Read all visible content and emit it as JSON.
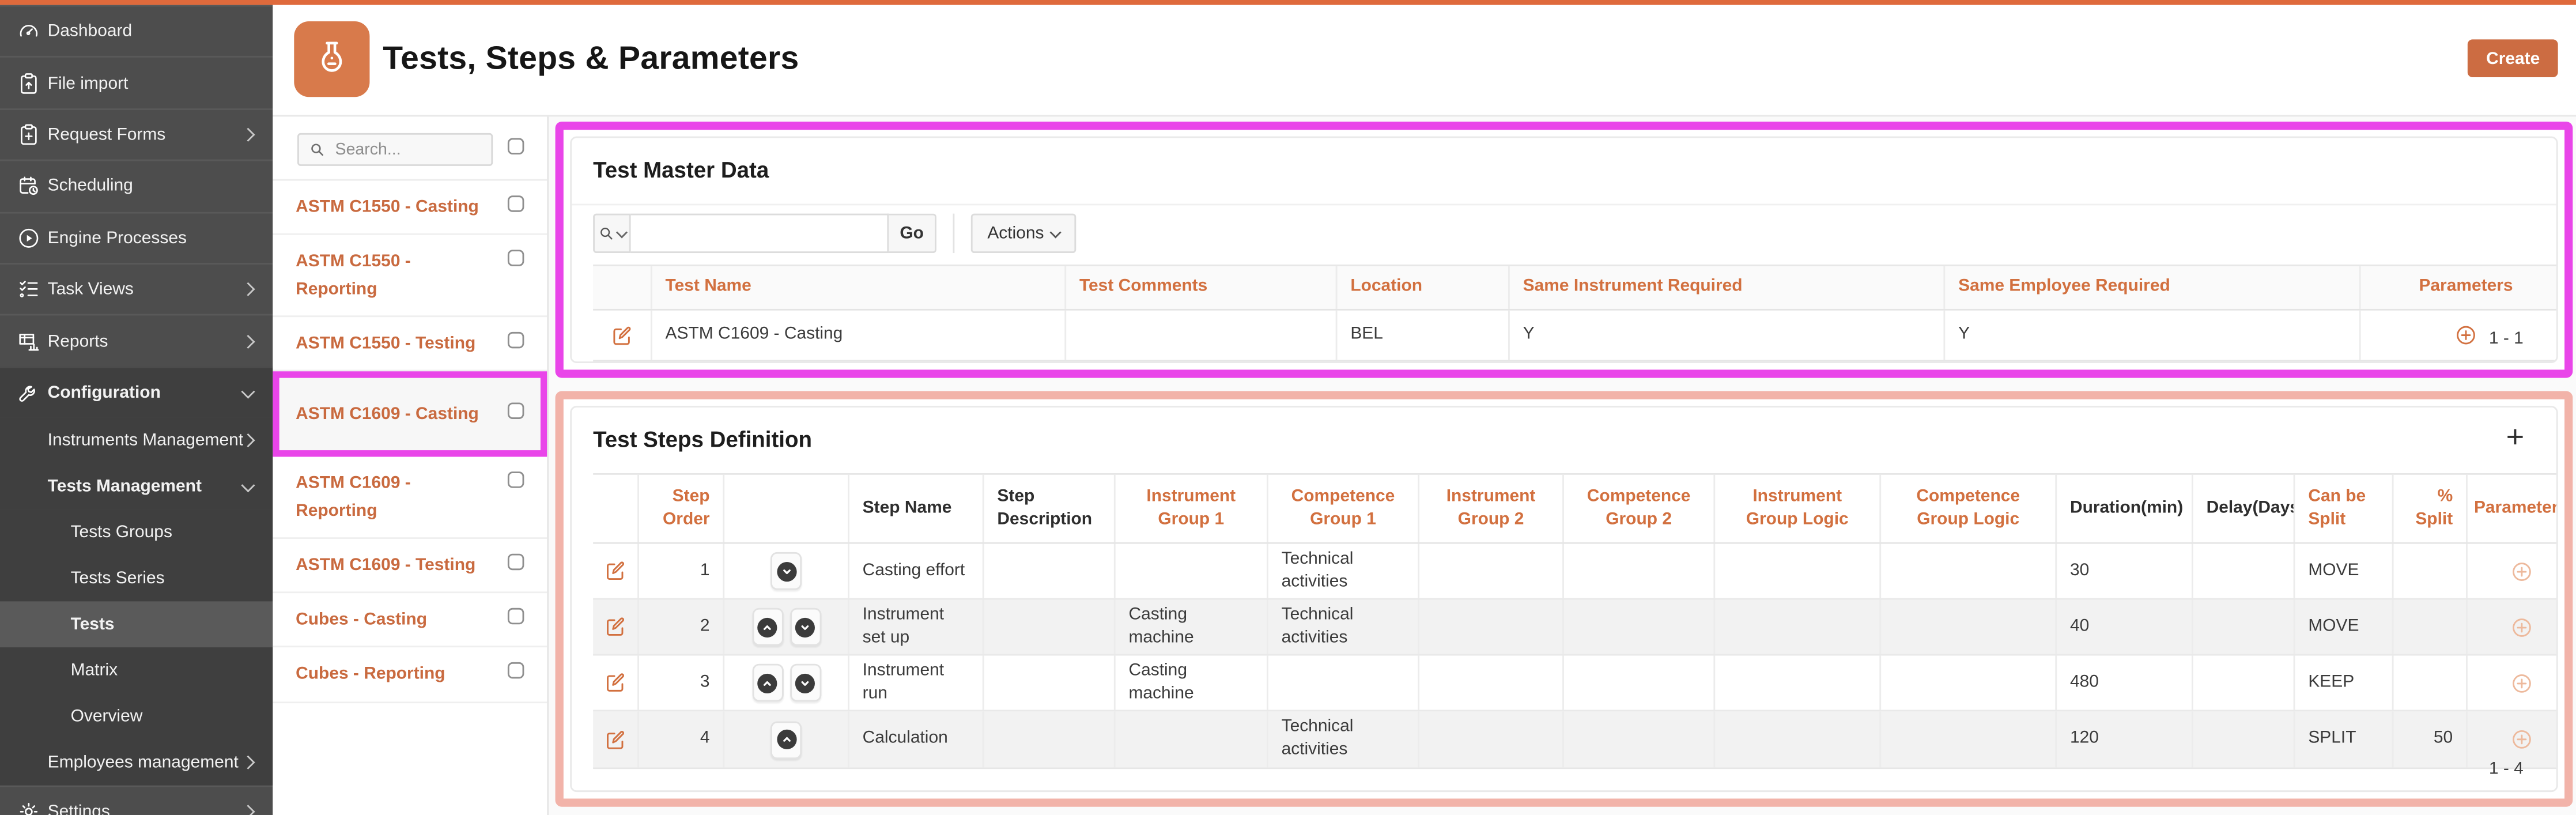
{
  "colors": {
    "accent_orange": "#D2703F",
    "button_orange": "#CC6C42",
    "topbar_orange": "#DF6A3C",
    "app_icon_orange": "#D87A4B",
    "link_orange": "#C96A3F",
    "magenta_highlight": "#E945E9",
    "salmon_highlight": "#F2B3A9",
    "sidebar_bg": "#4D4D4D",
    "sidebar_dark_bg": "#3F3F3F",
    "sidebar_selected_bg": "#5A5A5A"
  },
  "header": {
    "title": "Tests, Steps & Parameters",
    "create_label": "Create"
  },
  "sidebar": {
    "items": [
      {
        "label": "Dashboard",
        "icon": "gauge",
        "level": 0
      },
      {
        "label": "File import",
        "icon": "clipboard-up",
        "level": 0
      },
      {
        "label": "Request Forms",
        "icon": "clipboard-plus",
        "level": 0,
        "chevron": "right"
      },
      {
        "label": "Scheduling",
        "icon": "calendar-clock",
        "level": 0
      },
      {
        "label": "Engine Processes",
        "icon": "play-circle",
        "level": 0
      },
      {
        "label": "Task Views",
        "icon": "checklist",
        "level": 0,
        "chevron": "right"
      },
      {
        "label": "Reports",
        "icon": "report-table",
        "level": 0,
        "chevron": "right"
      },
      {
        "label": "Configuration",
        "icon": "wrench",
        "level": 0,
        "chevron": "down",
        "bold": true,
        "dark": true
      },
      {
        "label": "Instruments Management",
        "level": 1,
        "chevron": "right",
        "dark": true
      },
      {
        "label": "Tests Management",
        "level": 1,
        "chevron": "down",
        "bold": true,
        "dark": true
      },
      {
        "label": "Tests Groups",
        "level": 2,
        "dark": true
      },
      {
        "label": "Tests Series",
        "level": 2,
        "dark": true
      },
      {
        "label": "Tests",
        "level": 2,
        "dark": true,
        "selected": true,
        "bold": true
      },
      {
        "label": "Matrix",
        "level": 2,
        "dark": true
      },
      {
        "label": "Overview",
        "level": 2,
        "dark": true
      },
      {
        "label": "Employees management",
        "level": 1,
        "chevron": "right",
        "dark": true
      },
      {
        "label": "Settings",
        "icon": "gear",
        "level": 0,
        "chevron": "right"
      }
    ]
  },
  "test_list": {
    "search_placeholder": "Search...",
    "items": [
      {
        "label": "ASTM C1550 - Casting",
        "selected": false
      },
      {
        "label": "ASTM C1550 - Reporting",
        "selected": false
      },
      {
        "label": "ASTM C1550 - Testing",
        "selected": false
      },
      {
        "label": "ASTM C1609 - Casting",
        "selected": true
      },
      {
        "label": "ASTM C1609 - Reporting",
        "selected": false
      },
      {
        "label": "ASTM C1609 - Testing",
        "selected": false
      },
      {
        "label": "Cubes - Casting",
        "selected": false
      },
      {
        "label": "Cubes - Reporting",
        "selected": false
      }
    ]
  },
  "master_data": {
    "title": "Test Master Data",
    "go_label": "Go",
    "actions_label": "Actions",
    "columns": [
      "Test Name",
      "Test Comments",
      "Location",
      "Same Instrument Required",
      "Same Employee Required",
      "Parameters"
    ],
    "rows": [
      {
        "test_name": "ASTM C1609 - Casting",
        "test_comments": "",
        "location": "BEL",
        "same_instrument_required": "Y",
        "same_employee_required": "Y"
      }
    ],
    "pagination": "1 - 1"
  },
  "steps": {
    "title": "Test Steps Definition",
    "add_label": "+",
    "columns": [
      "Step Order",
      "",
      "Step Name",
      "Step Description",
      "Instrument Group 1",
      "Competence Group 1",
      "Instrument Group 2",
      "Competence Group 2",
      "Instrument Group Logic",
      "Competence Group Logic",
      "Duration(min)",
      "Delay(Days)",
      "Can be Split",
      "% Split",
      "Parameters"
    ],
    "rows": [
      {
        "order": "1",
        "moves": [
          "down"
        ],
        "name": "Casting effort",
        "description": "",
        "instrument_group_1": "",
        "competence_group_1": "Technical activities",
        "instrument_group_2": "",
        "competence_group_2": "",
        "instrument_group_logic": "",
        "competence_group_logic": "",
        "duration": "30",
        "delay": "",
        "can_be_split": "MOVE",
        "pct_split": ""
      },
      {
        "order": "2",
        "moves": [
          "up",
          "down"
        ],
        "name": "Instrument set up",
        "description": "",
        "instrument_group_1": "Casting machine",
        "competence_group_1": "Technical activities",
        "instrument_group_2": "",
        "competence_group_2": "",
        "instrument_group_logic": "",
        "competence_group_logic": "",
        "duration": "40",
        "delay": "",
        "can_be_split": "MOVE",
        "pct_split": ""
      },
      {
        "order": "3",
        "moves": [
          "up",
          "down"
        ],
        "name": "Instrument run",
        "description": "",
        "instrument_group_1": "Casting machine",
        "competence_group_1": "",
        "instrument_group_2": "",
        "competence_group_2": "",
        "instrument_group_logic": "",
        "competence_group_logic": "",
        "duration": "480",
        "delay": "",
        "can_be_split": "KEEP",
        "pct_split": ""
      },
      {
        "order": "4",
        "moves": [
          "up"
        ],
        "name": "Calculation",
        "description": "",
        "instrument_group_1": "",
        "competence_group_1": "Technical activities",
        "instrument_group_2": "",
        "competence_group_2": "",
        "instrument_group_logic": "",
        "competence_group_logic": "",
        "duration": "120",
        "delay": "",
        "can_be_split": "SPLIT",
        "pct_split": "50"
      }
    ],
    "pagination": "1 - 4"
  }
}
